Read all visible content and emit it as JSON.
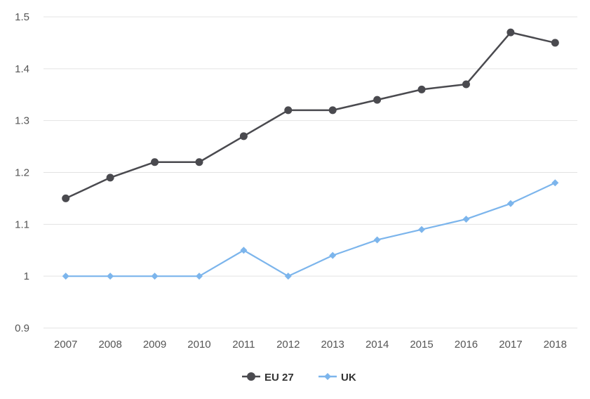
{
  "chart_data": {
    "type": "line",
    "title": "",
    "xlabel": "",
    "ylabel": "",
    "categories": [
      "2007",
      "2008",
      "2009",
      "2010",
      "2011",
      "2012",
      "2013",
      "2014",
      "2015",
      "2016",
      "2017",
      "2018"
    ],
    "ylim": [
      0.9,
      1.5
    ],
    "yticks": [
      "0.9",
      "1",
      "1.1",
      "1.2",
      "1.3",
      "1.4",
      "1.5"
    ],
    "grid": true,
    "legend_position": "bottom-center",
    "series": [
      {
        "name": "EU 27",
        "color": "#4a4a4f",
        "marker": "circle",
        "values": [
          1.15,
          1.19,
          1.22,
          1.22,
          1.27,
          1.32,
          1.32,
          1.34,
          1.36,
          1.37,
          1.47,
          1.45
        ]
      },
      {
        "name": "UK",
        "color": "#7cb5ec",
        "marker": "diamond",
        "values": [
          1.0,
          1.0,
          1.0,
          1.0,
          1.05,
          1.0,
          1.04,
          1.07,
          1.09,
          1.11,
          1.14,
          1.18
        ]
      }
    ]
  }
}
